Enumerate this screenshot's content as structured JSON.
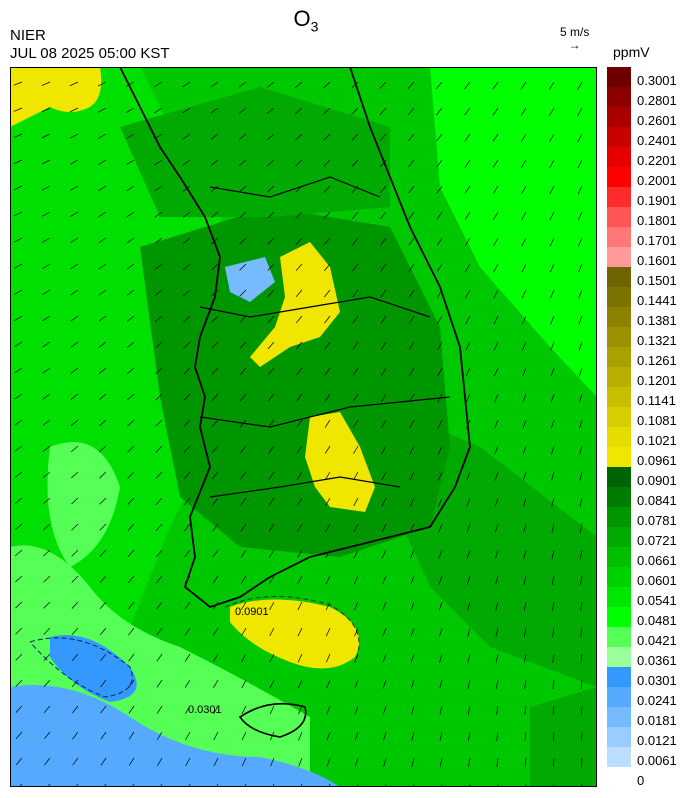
{
  "header": {
    "agency": "NIER",
    "timestamp": "JUL 08 2025 05:00 KST",
    "title_main": "O",
    "title_sub": "3"
  },
  "wind_reference": {
    "label": "5 m/s",
    "arrow": "→"
  },
  "colorbar": {
    "unit": "ppmV",
    "labels": [
      "0.3001",
      "0.2801",
      "0.2601",
      "0.2401",
      "0.2201",
      "0.2001",
      "0.1901",
      "0.1801",
      "0.1701",
      "0.1601",
      "0.1501",
      "0.1441",
      "0.1381",
      "0.1321",
      "0.1261",
      "0.1201",
      "0.1141",
      "0.1081",
      "0.1021",
      "0.0961",
      "0.0901",
      "0.0841",
      "0.0781",
      "0.0721",
      "0.0661",
      "0.0601",
      "0.0541",
      "0.0481",
      "0.0421",
      "0.0361",
      "0.0301",
      "0.0241",
      "0.0181",
      "0.0121",
      "0.0061",
      "0"
    ],
    "colors": [
      "#6e0000",
      "#8c0000",
      "#aa0000",
      "#c80000",
      "#e60000",
      "#ff0000",
      "#ff2a2a",
      "#ff5555",
      "#ff7777",
      "#ff9a9a",
      "#6e6400",
      "#7d7300",
      "#8c8200",
      "#9b9100",
      "#aaa000",
      "#b9af00",
      "#c8be00",
      "#d7cd00",
      "#e6dc00",
      "#f0e600",
      "#006400",
      "#007d00",
      "#009600",
      "#00aa00",
      "#00be00",
      "#00d200",
      "#00e600",
      "#00ff00",
      "#55ff55",
      "#99ff99",
      "#3399ff",
      "#55aaff",
      "#77bbff",
      "#99ccff",
      "#bbddff"
    ]
  },
  "map": {
    "contour_labels": [
      "0.0901",
      "0.0301"
    ],
    "wind_vector_field": "arrows"
  }
}
